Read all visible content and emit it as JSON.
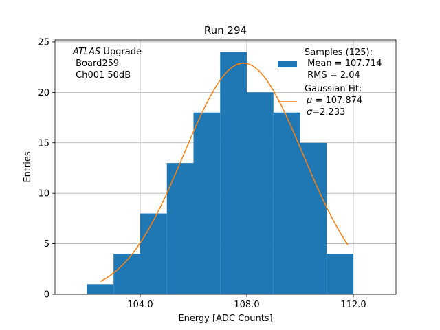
{
  "chart_data": {
    "type": "bar",
    "title": "Run 294",
    "xlabel": "Energy [ADC Counts]",
    "ylabel": "Entries",
    "xlim": [
      100.8,
      113.6
    ],
    "ylim": [
      0,
      25.2
    ],
    "xticks": [
      104,
      108,
      112
    ],
    "xtick_labels": [
      "104.0",
      "108.0",
      "112.0"
    ],
    "yticks": [
      0,
      5,
      10,
      15,
      20,
      25
    ],
    "ytick_labels": [
      "0",
      "5",
      "10",
      "15",
      "20",
      "25"
    ],
    "grid": true,
    "bin_edges": [
      102,
      103,
      104,
      105,
      106,
      107,
      108,
      109,
      110,
      111,
      112
    ],
    "counts": [
      1,
      4,
      8,
      13,
      18,
      24,
      20,
      18,
      15,
      4
    ],
    "fit": {
      "mu": 107.874,
      "sigma": 2.233,
      "amplitude": 22.9,
      "x_range": [
        102.5,
        111.8
      ]
    },
    "colors": {
      "bars": "#1f77b4",
      "fit": "#ff7f0e",
      "grid": "#b0b0b0"
    },
    "annotation": {
      "line1_italic": "ATLAS",
      "line1_rest": " Upgrade",
      "line2": " Board259",
      "line3": " Ch001 50dB"
    },
    "legend": {
      "position": "top-right",
      "samples_line1": "Samples (125):",
      "samples_line2": " Mean = 107.714",
      "samples_line3": " RMS = 2.04",
      "fit_line1": "Gaussian Fit:",
      "fit_mu_symbol": "μ",
      "fit_mu_rest": " = 107.874",
      "fit_sigma_symbol": "σ",
      "fit_sigma_rest": "=2.233"
    }
  }
}
